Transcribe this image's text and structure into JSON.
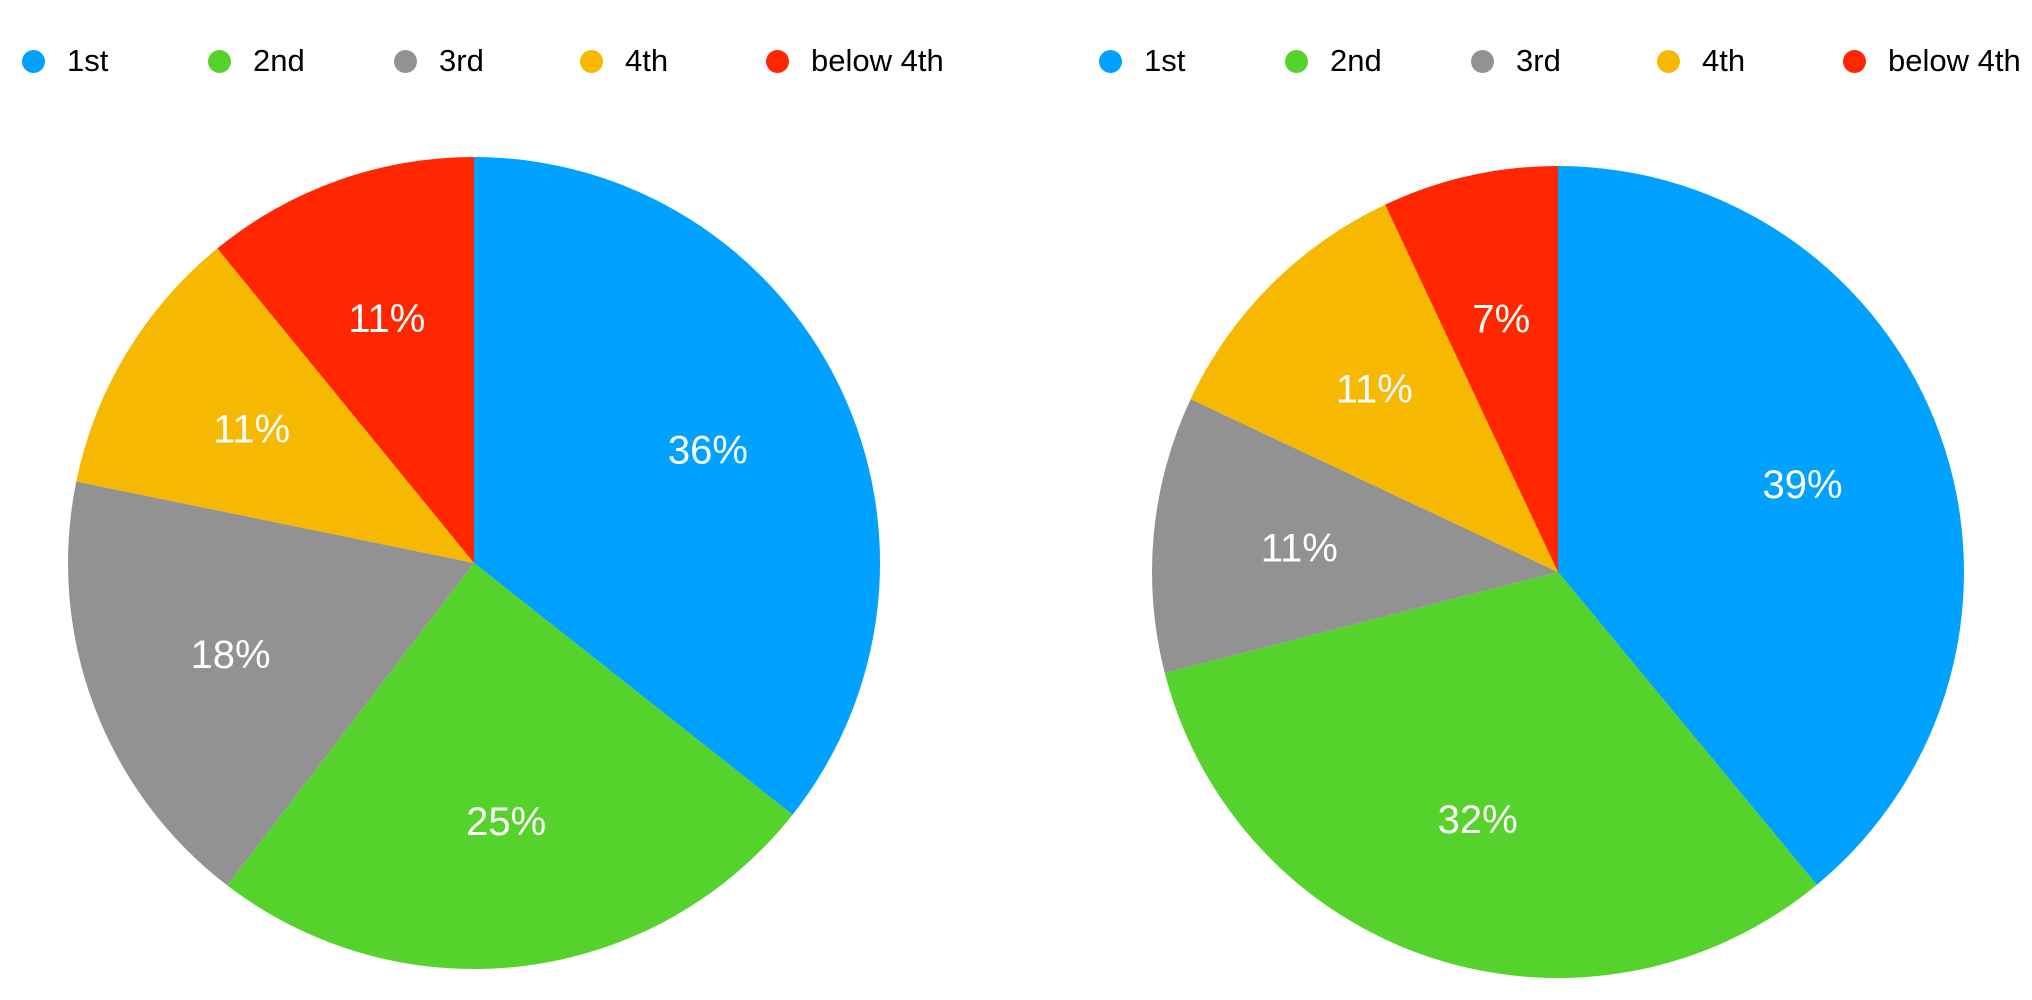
{
  "page": {
    "background": "#FFFFFF",
    "legend_text_color": "#000000",
    "slice_label_color": "#FFFFFF"
  },
  "chart_data": [
    {
      "type": "pie",
      "name": "left-pie",
      "title": "",
      "legend_position": "top",
      "direction": "clockwise",
      "start_angle_deg": 0,
      "categories": [
        "1st",
        "2nd",
        "3rd",
        "4th",
        "below 4th"
      ],
      "values": [
        36,
        25,
        18,
        11,
        11
      ],
      "data_labels": [
        "36%",
        "25%",
        "18%",
        "11%",
        "11%"
      ],
      "colors": [
        "#00A1FF",
        "#56D22C",
        "#929292",
        "#F6B800",
        "#FF2600"
      ],
      "label_radius_fraction": 0.64
    },
    {
      "type": "pie",
      "name": "right-pie",
      "title": "",
      "legend_position": "top",
      "direction": "clockwise",
      "start_angle_deg": 0,
      "categories": [
        "1st",
        "2nd",
        "3rd",
        "4th",
        "below 4th"
      ],
      "values": [
        39,
        32,
        11,
        11,
        7
      ],
      "data_labels": [
        "39%",
        "32%",
        "11%",
        "11%",
        "7%"
      ],
      "colors": [
        "#00A1FF",
        "#56D22C",
        "#929292",
        "#F6B800",
        "#FF2600"
      ],
      "label_radius_fraction": 0.64
    }
  ]
}
